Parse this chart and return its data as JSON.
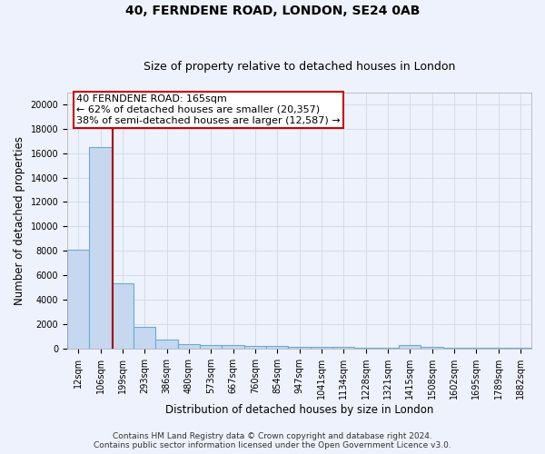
{
  "title": "40, FERNDENE ROAD, LONDON, SE24 0AB",
  "subtitle": "Size of property relative to detached houses in London",
  "xlabel": "Distribution of detached houses by size in London",
  "ylabel": "Number of detached properties",
  "bar_categories": [
    "12sqm",
    "106sqm",
    "199sqm",
    "293sqm",
    "386sqm",
    "480sqm",
    "573sqm",
    "667sqm",
    "760sqm",
    "854sqm",
    "947sqm",
    "1041sqm",
    "1134sqm",
    "1228sqm",
    "1321sqm",
    "1415sqm",
    "1508sqm",
    "1602sqm",
    "1695sqm",
    "1789sqm",
    "1882sqm"
  ],
  "bar_values": [
    8100,
    16500,
    5300,
    1800,
    700,
    380,
    300,
    250,
    200,
    170,
    140,
    120,
    100,
    90,
    80,
    250,
    120,
    90,
    80,
    70,
    60
  ],
  "bar_color": "#c5d8f0",
  "bar_edge_color": "#6aaad4",
  "property_line_x": 1.57,
  "property_line_color": "#aa0000",
  "annotation_text": "40 FERNDENE ROAD: 165sqm\n← 62% of detached houses are smaller (20,357)\n38% of semi-detached houses are larger (12,587) →",
  "annotation_box_color": "#cc0000",
  "annotation_bg_color": "#ffffff",
  "ylim": [
    0,
    21000
  ],
  "yticks": [
    0,
    2000,
    4000,
    6000,
    8000,
    10000,
    12000,
    14000,
    16000,
    18000,
    20000
  ],
  "grid_color": "#d0d8e8",
  "bg_color": "#eef2fc",
  "footer_line1": "Contains HM Land Registry data © Crown copyright and database right 2024.",
  "footer_line2": "Contains public sector information licensed under the Open Government Licence v3.0.",
  "title_fontsize": 10,
  "subtitle_fontsize": 9,
  "axis_label_fontsize": 8.5,
  "tick_fontsize": 7,
  "annotation_fontsize": 8,
  "footer_fontsize": 6.5
}
